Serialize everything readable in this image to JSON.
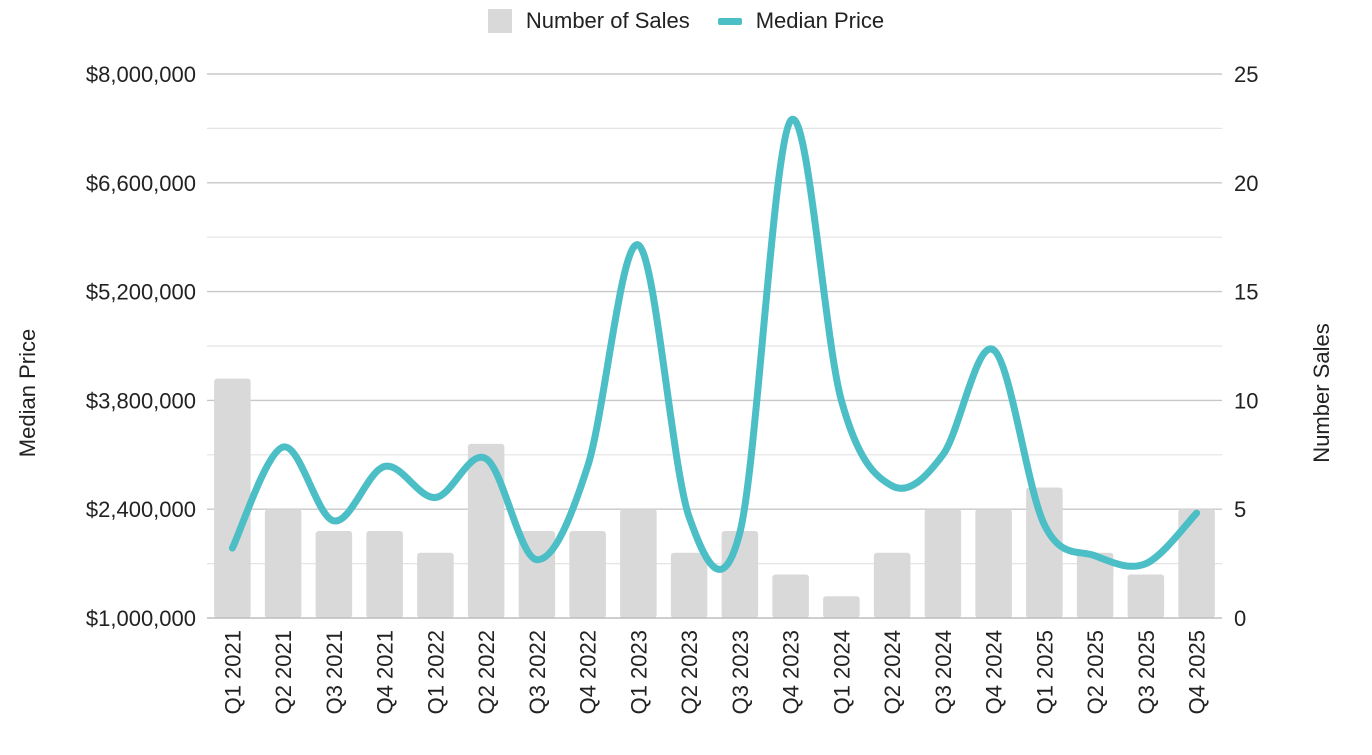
{
  "legend": {
    "bar_label": "Number of Sales",
    "line_label": "Median Price"
  },
  "colors": {
    "bar": "#d9d9d9",
    "line": "#4cbec6",
    "grid_major": "#c8c8c8",
    "grid_minor": "#e4e4e4"
  },
  "chart_data": {
    "type": "bar",
    "ylabel_left": "Median Price",
    "ylabel_right": "Number Sales",
    "grid": true,
    "legend_position": "top-center",
    "categories": [
      "Q1 2021",
      "Q2 2021",
      "Q3 2021",
      "Q4 2021",
      "Q1 2022",
      "Q2 2022",
      "Q3 2022",
      "Q4 2022",
      "Q1 2023",
      "Q2 2023",
      "Q3 2023",
      "Q4 2023",
      "Q1 2024",
      "Q2 2024",
      "Q3 2024",
      "Q4 2024",
      "Q1 2025",
      "Q2 2025",
      "Q3 2025",
      "Q4 2025"
    ],
    "left_axis": {
      "ylim": [
        1000000,
        8000000
      ],
      "tick_values": [
        1000000,
        2400000,
        3800000,
        5200000,
        6600000,
        8000000
      ],
      "tick_labels": [
        "$1,000,000",
        "$2,400,000",
        "$3,800,000",
        "$5,200,000",
        "$6,600,000",
        "$8,000,000"
      ]
    },
    "right_axis": {
      "ylim": [
        0,
        25
      ],
      "tick_values": [
        0,
        5,
        10,
        15,
        20,
        25
      ],
      "tick_labels": [
        "0",
        "5",
        "10",
        "15",
        "20",
        "25"
      ]
    },
    "series": [
      {
        "name": "Number of Sales",
        "type": "bar",
        "axis": "right",
        "values": [
          11,
          5,
          4,
          4,
          3,
          8,
          4,
          4,
          5,
          3,
          4,
          2,
          1,
          3,
          5,
          5,
          6,
          3,
          2,
          5
        ]
      },
      {
        "name": "Median Price",
        "type": "line",
        "axis": "left",
        "values": [
          1900000,
          3200000,
          2250000,
          2950000,
          2550000,
          3050000,
          1750000,
          2950000,
          5800000,
          2300000,
          2100000,
          7400000,
          3800000,
          2700000,
          3100000,
          4450000,
          2200000,
          1800000,
          1700000,
          2350000
        ]
      }
    ]
  }
}
